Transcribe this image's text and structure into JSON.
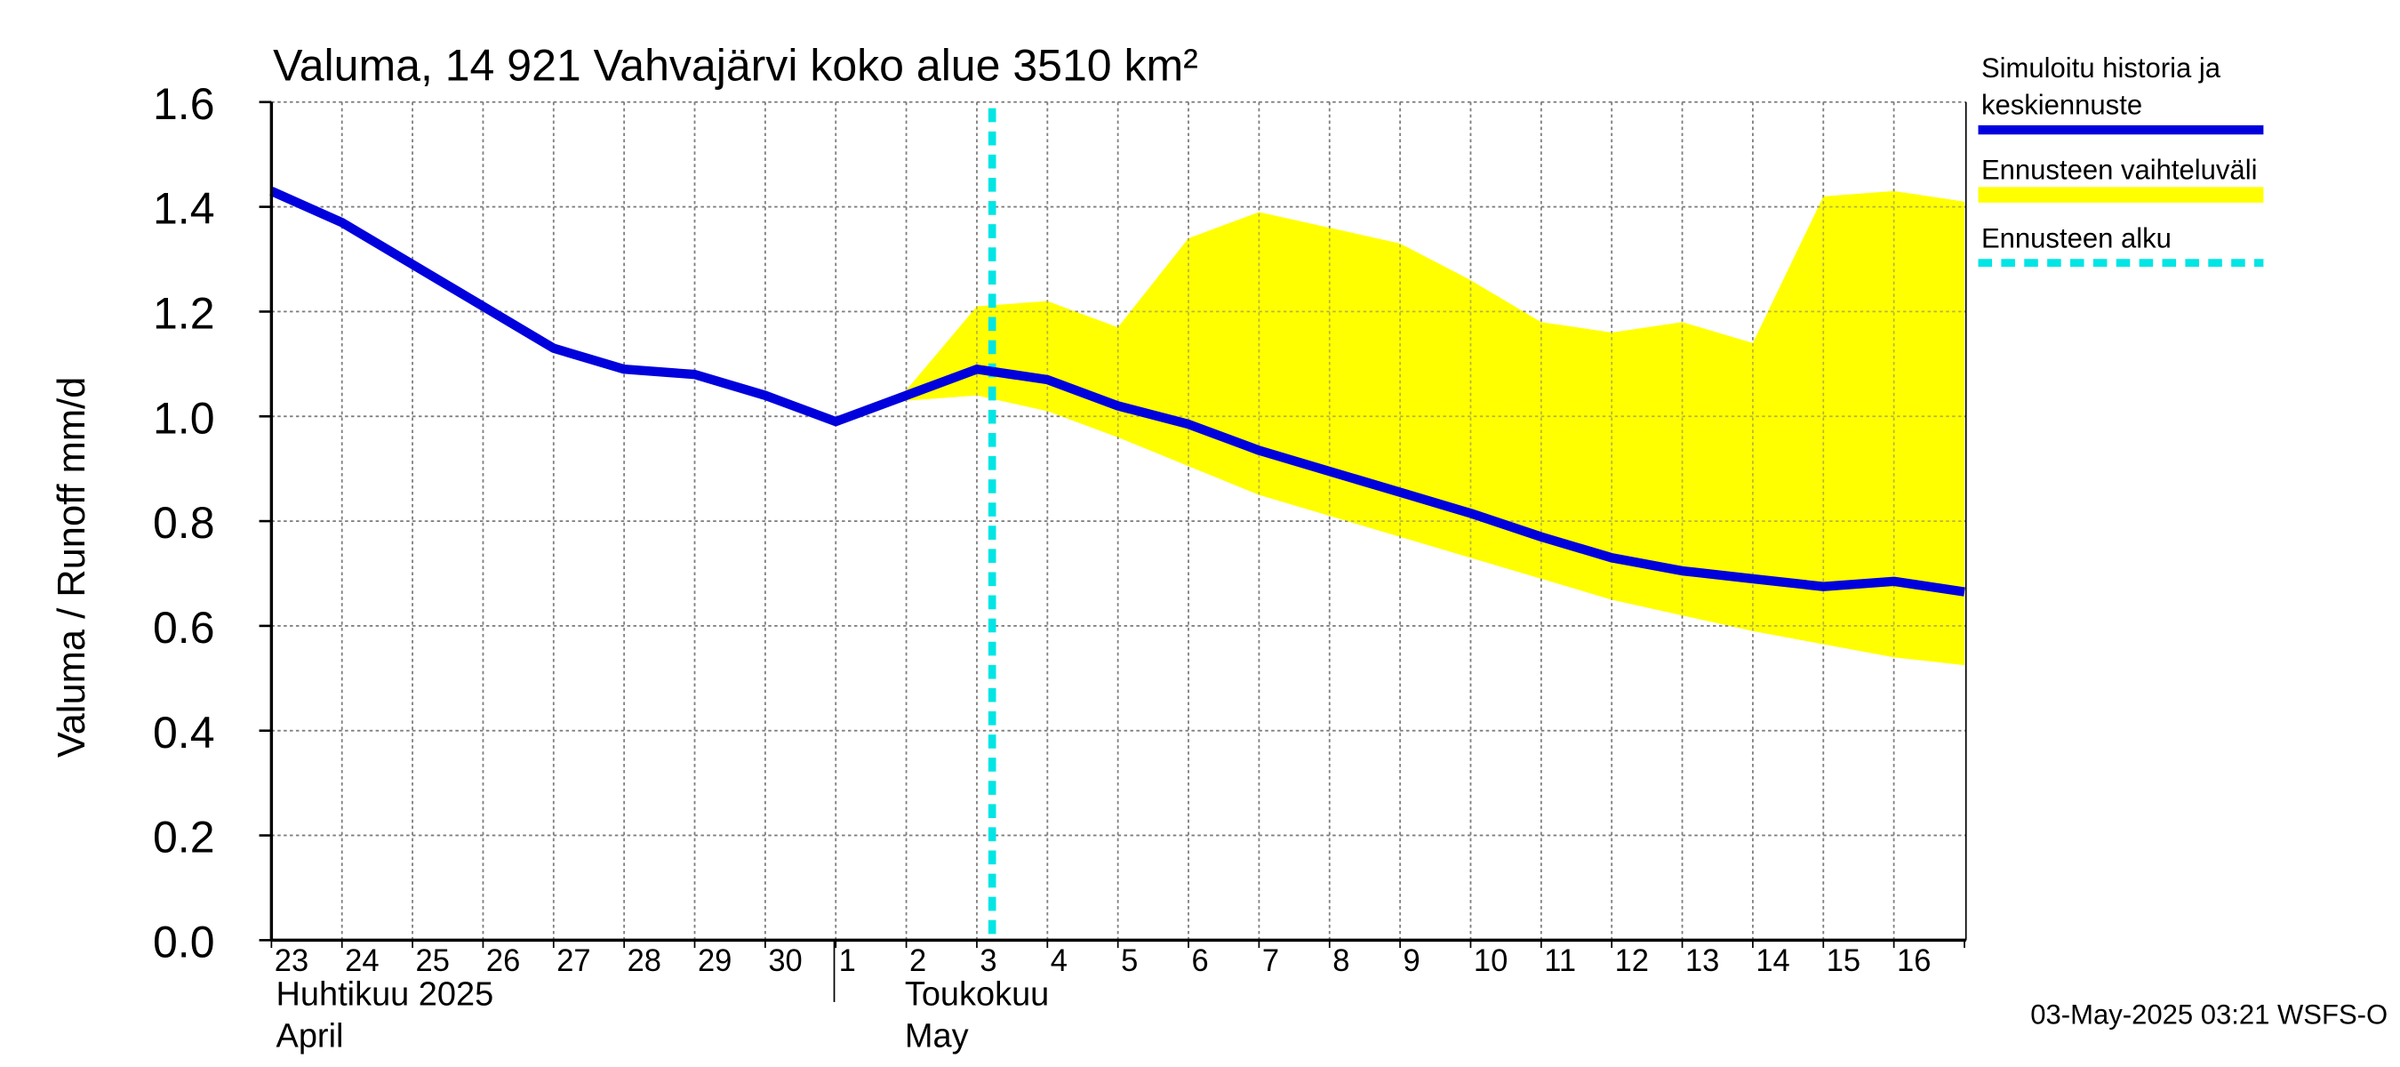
{
  "chart_data": {
    "type": "line",
    "title": "Valuma, 14 921 Vahvajärvi koko alue 3510 km²",
    "ylabel": "Valuma / Runoff    mm/d",
    "ylim": [
      0,
      1.6
    ],
    "yticks": [
      "0.0",
      "0.2",
      "0.4",
      "0.6",
      "0.8",
      "1.0",
      "1.2",
      "1.4",
      "1.6"
    ],
    "grid": true,
    "legend_placement": "right",
    "x_ticks": [
      "23",
      "24",
      "25",
      "26",
      "27",
      "28",
      "29",
      "30",
      "1",
      "2",
      "3",
      "4",
      "5",
      "6",
      "7",
      "8",
      "9",
      "10",
      "11",
      "12",
      "13",
      "14",
      "15",
      "16"
    ],
    "month_labels": [
      {
        "line1": "Huhtikuu  2025",
        "line2": "April"
      },
      {
        "line1": "Toukokuu",
        "line2": "May"
      }
    ],
    "forecast_start": "2025-05-03",
    "series": [
      {
        "name": "Simuloitu historia ja keskiennuste",
        "color": "#0000dd",
        "x": [
          "2025-04-23",
          "2025-04-24",
          "2025-04-25",
          "2025-04-26",
          "2025-04-27",
          "2025-04-28",
          "2025-04-29",
          "2025-04-30",
          "2025-05-01",
          "2025-05-02",
          "2025-05-03",
          "2025-05-04",
          "2025-05-05",
          "2025-05-06",
          "2025-05-07",
          "2025-05-08",
          "2025-05-09",
          "2025-05-10",
          "2025-05-11",
          "2025-05-12",
          "2025-05-13",
          "2025-05-14",
          "2025-05-15",
          "2025-05-16",
          "2025-05-17"
        ],
        "values": [
          1.43,
          1.37,
          1.29,
          1.21,
          1.13,
          1.09,
          1.08,
          1.04,
          0.99,
          1.04,
          1.09,
          1.07,
          1.02,
          0.985,
          0.935,
          0.895,
          0.855,
          0.815,
          0.77,
          0.73,
          0.705,
          0.69,
          0.675,
          0.685,
          0.665
        ]
      },
      {
        "name": "Ennusteen vaihteluväli",
        "color": "#ffff00",
        "type": "area",
        "x": [
          "2025-05-02",
          "2025-05-03",
          "2025-05-04",
          "2025-05-05",
          "2025-05-06",
          "2025-05-07",
          "2025-05-08",
          "2025-05-09",
          "2025-05-10",
          "2025-05-11",
          "2025-05-12",
          "2025-05-13",
          "2025-05-14",
          "2025-05-15",
          "2025-05-16",
          "2025-05-17"
        ],
        "upper": [
          1.05,
          1.21,
          1.22,
          1.17,
          1.34,
          1.39,
          1.36,
          1.33,
          1.26,
          1.18,
          1.16,
          1.18,
          1.14,
          1.42,
          1.43,
          1.41
        ],
        "lower": [
          1.03,
          1.04,
          1.01,
          0.96,
          0.905,
          0.85,
          0.81,
          0.77,
          0.73,
          0.69,
          0.65,
          0.62,
          0.59,
          0.565,
          0.54,
          0.525
        ]
      },
      {
        "name": "Ennusteen alku",
        "color": "#00e5e5",
        "type": "vline",
        "x": "2025-05-03"
      }
    ]
  },
  "legend": {
    "items": [
      {
        "line1": "Simuloitu historia ja",
        "line2": "keskiennuste",
        "color": "#0000dd",
        "style": "solid"
      },
      {
        "line1": "Ennusteen vaihteluväli",
        "line2": "",
        "color": "#ffff00",
        "style": "solid"
      },
      {
        "line1": "Ennusteen alku",
        "line2": "",
        "color": "#00e5e5",
        "style": "dashed"
      }
    ]
  },
  "footer": {
    "stamp": "03-May-2025 03:21 WSFS-O"
  }
}
